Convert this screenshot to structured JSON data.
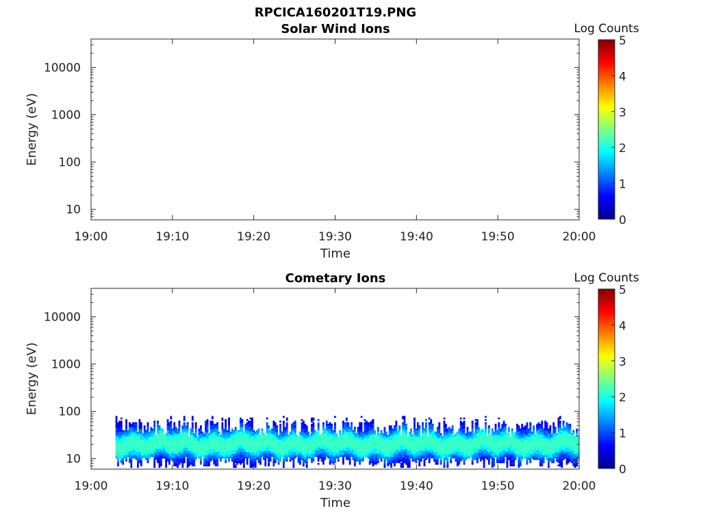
{
  "figure": {
    "title": "RPCICA160201T19.PNG"
  },
  "chart_data": [
    {
      "type": "heatmap",
      "title": "Solar Wind Ions",
      "xlabel": "Time",
      "ylabel": "Energy (eV)",
      "x_ticks": [
        "19:00",
        "19:10",
        "19:20",
        "19:30",
        "19:40",
        "19:50",
        "20:00"
      ],
      "xlim": [
        "19:00",
        "20:00"
      ],
      "y_scale": "log",
      "y_ticks": [
        10,
        100,
        1000,
        10000
      ],
      "y_tick_labels": [
        "10",
        "100",
        "1000",
        "10000"
      ],
      "ylim": [
        6,
        40000
      ],
      "colorbar": {
        "label": "Log Counts",
        "range": [
          0,
          5
        ],
        "ticks": [
          "0",
          "1",
          "2",
          "3",
          "4",
          "5"
        ],
        "colormap": "jet"
      },
      "data": "no counts visible (empty panel)"
    },
    {
      "type": "heatmap",
      "title": "Cometary Ions",
      "xlabel": "Time",
      "ylabel": "Energy (eV)",
      "x_ticks": [
        "19:00",
        "19:10",
        "19:20",
        "19:30",
        "19:40",
        "19:50",
        "20:00"
      ],
      "xlim": [
        "19:00",
        "20:00"
      ],
      "y_scale": "log",
      "y_ticks": [
        10,
        100,
        1000,
        10000
      ],
      "y_tick_labels": [
        "10",
        "100",
        "1000",
        "10000"
      ],
      "ylim": [
        6,
        40000
      ],
      "colorbar": {
        "label": "Log Counts",
        "range": [
          0,
          5
        ],
        "ticks": [
          "0",
          "1",
          "2",
          "3",
          "4",
          "5"
        ],
        "colormap": "jet"
      },
      "data": {
        "time_start": "19:03",
        "time_end": "20:00",
        "energy_min_eV": 6,
        "energy_max_eV": 80,
        "peak_energy_eV": 20,
        "peak_log_counts": 2.0,
        "band_log_counts_range": [
          0.3,
          2.0
        ]
      }
    }
  ]
}
